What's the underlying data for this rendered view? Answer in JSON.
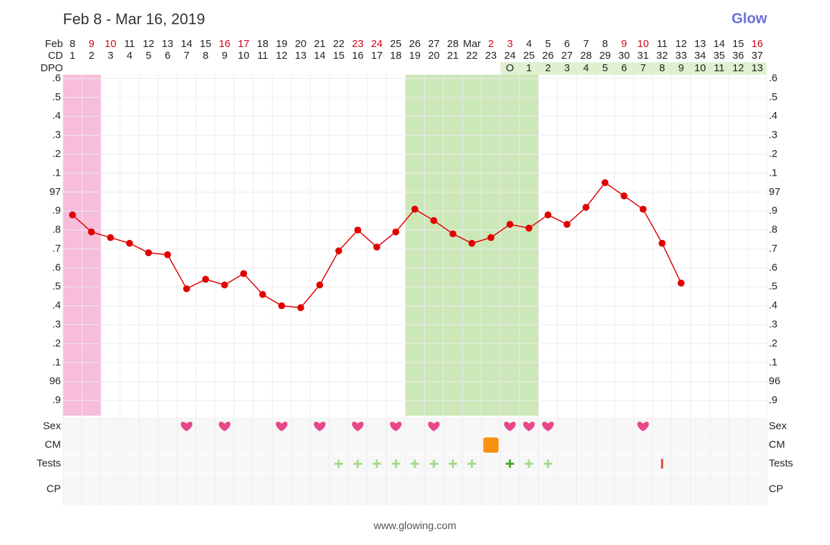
{
  "chart_data": {
    "type": "line",
    "title": "Feb 8 - Mar 16, 2019",
    "brand": "Glow",
    "footer": "www.glowing.com",
    "month_label": "Feb",
    "cd_label": "CD",
    "dpo_label": "DPO",
    "categories": [
      "8",
      "9",
      "10",
      "11",
      "12",
      "13",
      "14",
      "15",
      "16",
      "17",
      "18",
      "19",
      "20",
      "21",
      "22",
      "23",
      "24",
      "25",
      "26",
      "27",
      "28",
      "Mar",
      "2",
      "3",
      "4",
      "5",
      "6",
      "7",
      "8",
      "9",
      "10",
      "11",
      "12",
      "13",
      "14",
      "15",
      "16"
    ],
    "date_colors": [
      "#222",
      "#d0021b",
      "#d0021b",
      "#222",
      "#222",
      "#222",
      "#222",
      "#222",
      "#d0021b",
      "#d0021b",
      "#222",
      "#222",
      "#222",
      "#222",
      "#222",
      "#d0021b",
      "#d0021b",
      "#222",
      "#222",
      "#222",
      "#222",
      "#222",
      "#d0021b",
      "#d0021b",
      "#222",
      "#222",
      "#222",
      "#222",
      "#222",
      "#d0021b",
      "#d0021b",
      "#222",
      "#222",
      "#222",
      "#222",
      "#222",
      "#d0021b"
    ],
    "cd": [
      1,
      2,
      3,
      4,
      5,
      6,
      7,
      8,
      9,
      10,
      11,
      12,
      13,
      14,
      15,
      16,
      17,
      18,
      19,
      20,
      21,
      22,
      23,
      24,
      25,
      26,
      27,
      28,
      29,
      30,
      31,
      32,
      33,
      34,
      35,
      36,
      37
    ],
    "dpo": [
      null,
      null,
      null,
      null,
      null,
      null,
      null,
      null,
      null,
      null,
      null,
      null,
      null,
      null,
      null,
      null,
      null,
      null,
      null,
      null,
      null,
      null,
      null,
      "O",
      1,
      2,
      3,
      4,
      5,
      6,
      7,
      8,
      9,
      10,
      11,
      12,
      13
    ],
    "dpo_color": "#dff0d0",
    "values": [
      96.88,
      96.79,
      96.76,
      96.73,
      96.68,
      96.67,
      96.49,
      96.54,
      96.51,
      96.57,
      96.46,
      96.4,
      96.39,
      96.51,
      96.69,
      96.8,
      96.71,
      96.79,
      96.91,
      96.85,
      96.78,
      96.73,
      96.76,
      96.83,
      96.81,
      96.88,
      96.83,
      96.92,
      97.05,
      96.98,
      96.91,
      96.73,
      96.52,
      null,
      null,
      null,
      null
    ],
    "color": "#e00000",
    "ylim": [
      95.82,
      97.62
    ],
    "yticks": [
      {
        "value": 97.6,
        "label": ".6"
      },
      {
        "value": 97.5,
        "label": ".5"
      },
      {
        "value": 97.4,
        "label": ".4"
      },
      {
        "value": 97.3,
        "label": ".3"
      },
      {
        "value": 97.2,
        "label": ".2"
      },
      {
        "value": 97.1,
        "label": ".1"
      },
      97,
      {
        "value": 96.9,
        "label": ".9"
      },
      {
        "value": 96.8,
        "label": ".8"
      },
      {
        "value": 96.7,
        "label": ".7"
      },
      {
        "value": 96.6,
        "label": ".6"
      },
      {
        "value": 96.5,
        "label": ".5"
      },
      {
        "value": 96.4,
        "label": ".4"
      },
      {
        "value": 96.3,
        "label": ".3"
      },
      {
        "value": 96.2,
        "label": ".2"
      },
      {
        "value": 96.1,
        "label": ".1"
      },
      96,
      {
        "value": 95.9,
        "label": ".9"
      }
    ],
    "grid": true,
    "shaded_ranges": [
      {
        "from": 0,
        "to": 1,
        "color": "#f7bddb"
      },
      {
        "from": 18,
        "to": 24,
        "color": "#cde8b8"
      }
    ],
    "rows": [
      {
        "label": "Sex",
        "symbol": "heart",
        "color": "#e8488a",
        "days": [
          6,
          8,
          11,
          13,
          15,
          17,
          19,
          23,
          24,
          25,
          30
        ]
      },
      {
        "label": "CM",
        "symbol": "square",
        "color": "#f7910f",
        "days": [
          22
        ]
      },
      {
        "label": "Tests",
        "items": [
          {
            "day": 14,
            "symbol": "plus",
            "color": "#a7d98a"
          },
          {
            "day": 15,
            "symbol": "plus",
            "color": "#a7d98a"
          },
          {
            "day": 16,
            "symbol": "plus",
            "color": "#a7d98a"
          },
          {
            "day": 17,
            "symbol": "plus",
            "color": "#a7d98a"
          },
          {
            "day": 18,
            "symbol": "plus",
            "color": "#a7d98a"
          },
          {
            "day": 19,
            "symbol": "plus",
            "color": "#a7d98a"
          },
          {
            "day": 20,
            "symbol": "plus",
            "color": "#a7d98a"
          },
          {
            "day": 21,
            "symbol": "plus",
            "color": "#a7d98a"
          },
          {
            "day": 23,
            "symbol": "plus",
            "color": "#4aa52a"
          },
          {
            "day": 24,
            "symbol": "plus",
            "color": "#a7d98a"
          },
          {
            "day": 25,
            "symbol": "plus",
            "color": "#a7d98a"
          },
          {
            "day": 31,
            "symbol": "bar",
            "color": "#e2453c"
          }
        ]
      },
      {
        "label": "CP",
        "days": []
      }
    ]
  }
}
